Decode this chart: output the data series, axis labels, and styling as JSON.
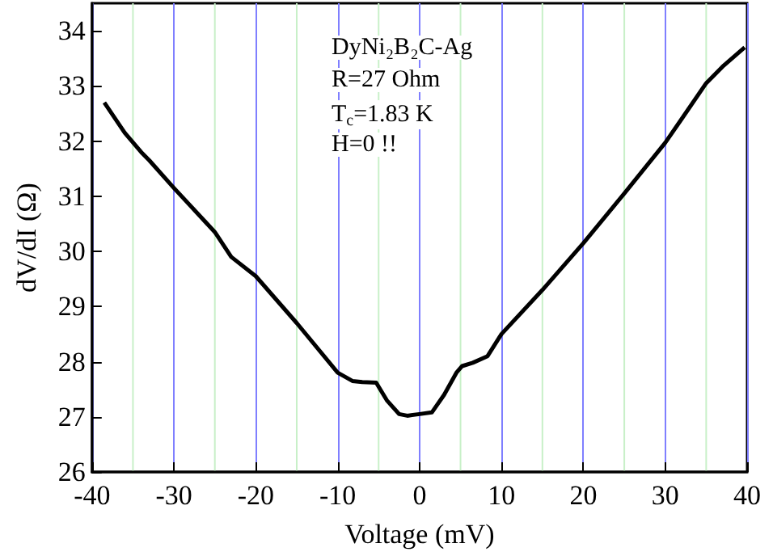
{
  "chart_data": {
    "type": "line",
    "xlabel": "Voltage (mV)",
    "ylabel": "dV/dI (Ω)",
    "annotations": [
      "DyNi₂B₂C-Ag",
      "R=27 Ohm",
      "T$_{c}$=1.83 K",
      "H=0 !!"
    ],
    "x": [
      -38.5,
      -36,
      -34,
      -33,
      -30,
      -25,
      -23,
      -20,
      -15,
      -10,
      -8.2,
      -7,
      -5.3,
      -4,
      -2.5,
      -1.5,
      0,
      1.5,
      3,
      4.5,
      5.2,
      6.5,
      8.3,
      10,
      15,
      20,
      25,
      30,
      32,
      35,
      37,
      39.7
    ],
    "series": [
      {
        "color": "#000000",
        "values": [
          32.7,
          32.15,
          31.8,
          31.65,
          31.15,
          30.35,
          29.9,
          29.55,
          28.7,
          27.8,
          27.65,
          27.63,
          27.62,
          27.3,
          27.05,
          27.02,
          27.05,
          27.08,
          27.4,
          27.8,
          27.92,
          27.98,
          28.1,
          28.5,
          29.3,
          30.15,
          31.05,
          31.97,
          32.4,
          33.05,
          33.35,
          33.7
        ]
      }
    ],
    "xlim": [
      -40,
      40
    ],
    "xticks": [
      -40,
      -30,
      -20,
      -10,
      0,
      10,
      20,
      30,
      40
    ],
    "ylim": [
      26,
      34.5
    ],
    "yticks": [
      26,
      27,
      28,
      29,
      30,
      31,
      32,
      33,
      34
    ],
    "grid": "x",
    "marker": "none",
    "line_style": "solid"
  }
}
